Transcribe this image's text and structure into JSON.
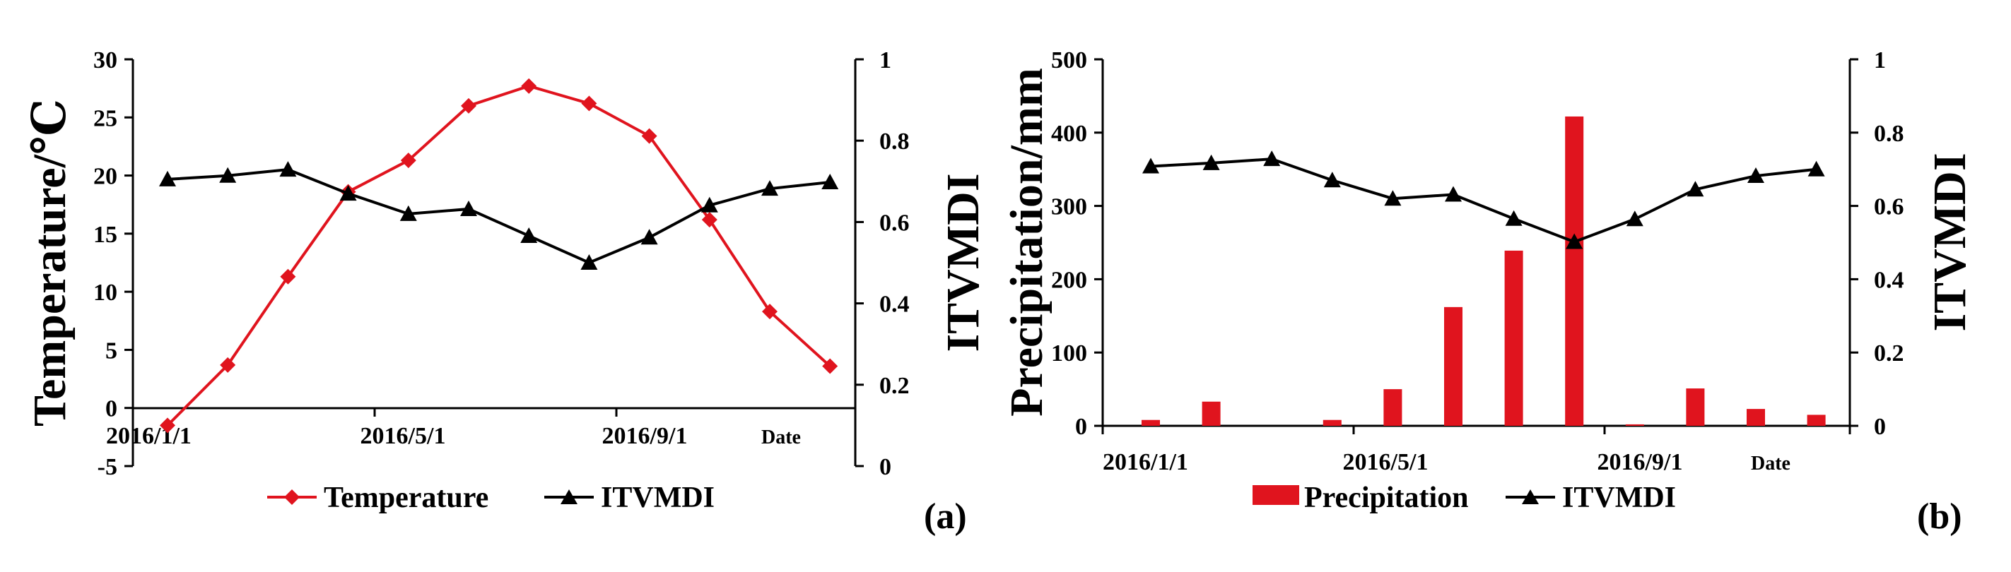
{
  "chart_data": [
    {
      "type": "line",
      "panel_label": "(a)",
      "x_tick_labels": [
        "2016/1/1",
        "2016/5/1",
        "2016/9/1"
      ],
      "x_end_label": "Date",
      "left_axis": {
        "title": "Temperature/℃",
        "ylim": [
          -5,
          30
        ],
        "ticks": [
          "-5",
          "0",
          "5",
          "10",
          "15",
          "20",
          "25",
          "30"
        ]
      },
      "right_axis": {
        "title": "ITVMDI",
        "ylim": [
          0,
          1
        ],
        "ticks": [
          "0",
          "0.2",
          "0.4",
          "0.6",
          "0.8",
          "1"
        ]
      },
      "x": [
        "2016/1",
        "2016/2",
        "2016/3",
        "2016/4",
        "2016/5",
        "2016/6",
        "2016/7",
        "2016/8",
        "2016/9",
        "2016/10",
        "2016/11",
        "2016/12"
      ],
      "series": [
        {
          "name": "Temperature",
          "axis": "left",
          "marker": "diamond",
          "color": "#e0141e",
          "values": [
            -1.5,
            3.7,
            11.3,
            18.6,
            21.3,
            26.0,
            27.7,
            26.2,
            23.4,
            16.2,
            8.3,
            3.6
          ]
        },
        {
          "name": "ITVMDI",
          "axis": "right",
          "marker": "triangle",
          "color": "#000000",
          "values": [
            0.705,
            0.714,
            0.729,
            0.67,
            0.62,
            0.632,
            0.566,
            0.5,
            0.562,
            0.641,
            0.682,
            0.698
          ]
        }
      ],
      "legend": {
        "position": "bottom",
        "items": [
          "Temperature",
          "ITVMDI"
        ]
      }
    },
    {
      "type": "bar+line",
      "panel_label": "(b)",
      "x_tick_labels": [
        "2016/1/1",
        "2016/5/1",
        "2016/9/1"
      ],
      "x_end_label": "Date",
      "left_axis": {
        "title": "Precipitation/mm",
        "ylim": [
          0,
          500
        ],
        "ticks": [
          "0",
          "100",
          "200",
          "300",
          "400",
          "500"
        ]
      },
      "right_axis": {
        "title": "ITVMDI",
        "ylim": [
          0,
          1
        ],
        "ticks": [
          "0",
          "0.2",
          "0.4",
          "0.6",
          "0.8",
          "1"
        ]
      },
      "x": [
        "2016/1",
        "2016/2",
        "2016/3",
        "2016/4",
        "2016/5",
        "2016/6",
        "2016/7",
        "2016/8",
        "2016/9",
        "2016/10",
        "2016/11",
        "2016/12"
      ],
      "series": [
        {
          "name": "Precipitation",
          "axis": "left",
          "kind": "bar",
          "color": "#e0141e",
          "values": [
            8,
            33,
            0,
            8,
            50,
            162,
            239,
            422,
            2,
            51,
            23,
            15
          ]
        },
        {
          "name": "ITVMDI",
          "axis": "right",
          "kind": "line",
          "marker": "triangle",
          "color": "#000000",
          "values": [
            0.708,
            0.717,
            0.728,
            0.67,
            0.62,
            0.631,
            0.565,
            0.502,
            0.564,
            0.645,
            0.682,
            0.7
          ]
        }
      ],
      "legend": {
        "position": "bottom",
        "items": [
          "Precipitation",
          "ITVMDI"
        ]
      }
    }
  ]
}
